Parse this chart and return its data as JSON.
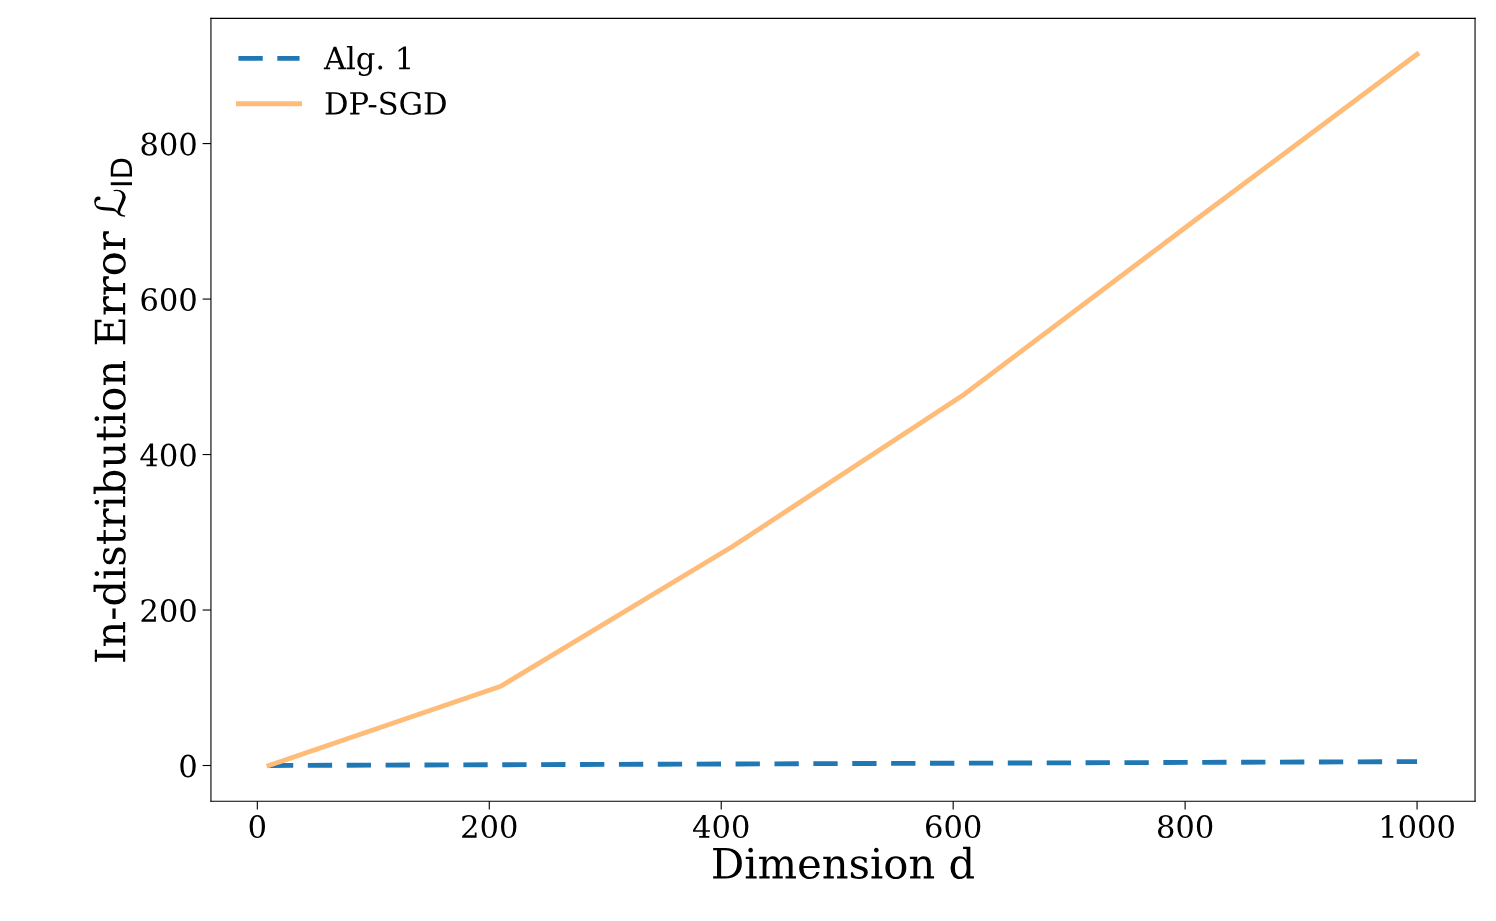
{
  "chart_data": {
    "type": "line",
    "xlabel": "Dimension d",
    "ylabel": "In-distribution Error ℒ$_{ID}$",
    "x": [
      10,
      210,
      410,
      610,
      810,
      1000
    ],
    "series": [
      {
        "name": "Alg. 1",
        "color": "#1f77b4",
        "line_style": "dashed",
        "values": [
          0,
          1,
          2,
          3,
          4,
          5
        ]
      },
      {
        "name": "DP-SGD",
        "color": "#ffbb78",
        "line_style": "solid",
        "values": [
          0,
          102,
          282,
          478,
          703,
          915
        ]
      }
    ],
    "xlim": [
      -40,
      1050
    ],
    "ylim": [
      -46,
      961
    ],
    "xticks": [
      0,
      200,
      400,
      600,
      800,
      1000
    ],
    "yticks": [
      0,
      200,
      400,
      600,
      800
    ],
    "grid": false,
    "legend": "top left",
    "marker": "none"
  }
}
